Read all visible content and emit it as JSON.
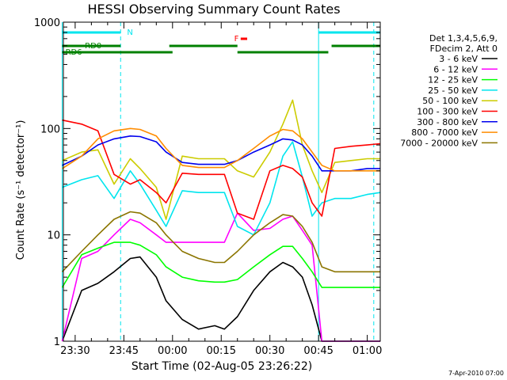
{
  "colors": {
    "background": "#ffffff",
    "axis": "#000000",
    "cyan_marker": "#00e5ee",
    "green_marker": "#008000",
    "flare_marker": "#ff0000"
  },
  "chart_data": {
    "type": "line",
    "title": "HESSI Observing Summary Count Rates",
    "xlabel": "Start Time (02-Aug-05 23:26:22)",
    "ylabel": "Count Rate (s⁻¹ detector⁻¹)",
    "y_scale": "log",
    "ylim": [
      1,
      1000
    ],
    "xlim": [
      "23:26:22",
      "01:04:00"
    ],
    "x_tick_labels": [
      "23:30",
      "23:45",
      "00:00",
      "00:15",
      "00:30",
      "00:45",
      "01:00"
    ],
    "y_tick_labels": [
      "1",
      "10",
      "100",
      "1000"
    ],
    "legend": {
      "header_lines": [
        "Det 1,3,4,5,6,9,",
        "FDecim 2, Att 0"
      ],
      "placement": "right"
    },
    "footer": "7-Apr-2010 07:00",
    "markers": {
      "labels": [
        "N",
        "RD0",
        "RD6",
        "F"
      ],
      "N_intervals": [
        [
          "23:26",
          "23:44"
        ],
        [
          "00:45",
          "01:04"
        ]
      ],
      "RD0_intervals": [
        [
          "23:26",
          "23:44"
        ],
        [
          "23:59",
          "00:20"
        ],
        [
          "00:49",
          "01:04"
        ]
      ],
      "RD6_intervals": [
        [
          "23:26",
          "00:00"
        ],
        [
          "00:20",
          "00:48"
        ]
      ],
      "F_interval": [
        "00:21",
        "00:23"
      ],
      "dashed_lines": [
        "23:44",
        "01:02"
      ],
      "solid_lines": [
        "23:26",
        "00:45"
      ]
    },
    "series": [
      {
        "name": "3 - 6 keV",
        "color": "#000000",
        "x": [
          "23:26",
          "23:32",
          "23:37",
          "23:42",
          "23:47",
          "23:50",
          "23:55",
          "23:58",
          "00:03",
          "00:08",
          "00:13",
          "00:16",
          "00:20",
          "00:25",
          "00:30",
          "00:34",
          "00:37",
          "00:40",
          "00:43",
          "00:46",
          "00:50",
          "00:55",
          "01:00",
          "01:04"
        ],
        "values": [
          1.0,
          3.0,
          3.5,
          4.5,
          6.0,
          6.2,
          4.0,
          2.4,
          1.6,
          1.3,
          1.4,
          1.3,
          1.7,
          3.0,
          4.5,
          5.5,
          5.0,
          4.0,
          2.2,
          1.0,
          1.0,
          1.0,
          1.0,
          1.0
        ]
      },
      {
        "name": "6 - 12 keV",
        "color": "#ff00ff",
        "x": [
          "23:26",
          "23:32",
          "23:37",
          "23:42",
          "23:47",
          "23:50",
          "23:55",
          "23:58",
          "00:03",
          "00:08",
          "00:13",
          "00:16",
          "00:20",
          "00:25",
          "00:30",
          "00:34",
          "00:37",
          "00:40",
          "00:43",
          "00:46",
          "00:50",
          "00:55",
          "01:00",
          "01:04"
        ],
        "values": [
          1.0,
          6.0,
          7.0,
          10.0,
          14.0,
          13.0,
          10.0,
          8.5,
          8.5,
          8.5,
          8.5,
          8.5,
          16.0,
          11.0,
          11.5,
          14.0,
          15.0,
          11.0,
          8.0,
          1.0,
          1.0,
          1.0,
          1.0,
          1.0
        ]
      },
      {
        "name": "12 - 25 keV",
        "color": "#00ff00",
        "x": [
          "23:26",
          "23:32",
          "23:37",
          "23:42",
          "23:47",
          "23:50",
          "23:55",
          "23:58",
          "00:03",
          "00:08",
          "00:13",
          "00:16",
          "00:20",
          "00:25",
          "00:30",
          "00:34",
          "00:37",
          "00:40",
          "00:43",
          "00:46",
          "00:50",
          "00:55",
          "01:00",
          "01:04"
        ],
        "values": [
          3.2,
          6.5,
          7.5,
          8.5,
          8.5,
          8.0,
          6.5,
          5.0,
          4.0,
          3.7,
          3.6,
          3.6,
          3.8,
          5.0,
          6.5,
          7.8,
          7.8,
          6.0,
          4.5,
          3.2,
          3.2,
          3.2,
          3.2,
          3.2
        ]
      },
      {
        "name": "25 - 50 keV",
        "color": "#00e5ee",
        "x": [
          "23:26",
          "23:32",
          "23:37",
          "23:42",
          "23:47",
          "23:50",
          "23:55",
          "23:58",
          "00:03",
          "00:08",
          "00:13",
          "00:16",
          "00:20",
          "00:25",
          "00:30",
          "00:34",
          "00:37",
          "00:40",
          "00:43",
          "00:46",
          "00:50",
          "00:55",
          "01:00",
          "01:04"
        ],
        "values": [
          28.0,
          33.0,
          36.0,
          22.0,
          40.0,
          30.0,
          17.0,
          12.0,
          26.0,
          25.0,
          25.0,
          25.0,
          12.0,
          10.0,
          20.0,
          55.0,
          75.0,
          35.0,
          15.0,
          20.0,
          22.0,
          22.0,
          24.0,
          25.0
        ]
      },
      {
        "name": "50 - 100 keV",
        "color": "#cccc00",
        "x": [
          "23:26",
          "23:32",
          "23:37",
          "23:42",
          "23:47",
          "23:50",
          "23:55",
          "23:58",
          "00:03",
          "00:08",
          "00:13",
          "00:16",
          "00:20",
          "00:25",
          "00:30",
          "00:34",
          "00:37",
          "00:40",
          "00:43",
          "00:46",
          "00:50",
          "00:55",
          "01:00",
          "01:04"
        ],
        "values": [
          50.0,
          60.0,
          63.0,
          30.0,
          52.0,
          42.0,
          28.0,
          14.0,
          55.0,
          52.0,
          52.0,
          52.0,
          40.0,
          35.0,
          60.0,
          110.0,
          185.0,
          70.0,
          40.0,
          25.0,
          48.0,
          50.0,
          52.0,
          52.0
        ]
      },
      {
        "name": "100 - 300 keV",
        "color": "#ff0000",
        "x": [
          "23:26",
          "23:32",
          "23:37",
          "23:42",
          "23:47",
          "23:50",
          "23:55",
          "23:58",
          "00:03",
          "00:08",
          "00:13",
          "00:16",
          "00:20",
          "00:25",
          "00:30",
          "00:34",
          "00:37",
          "00:40",
          "00:43",
          "00:46",
          "00:50",
          "00:55",
          "01:00",
          "01:04"
        ],
        "values": [
          120.0,
          110.0,
          95.0,
          37.0,
          30.0,
          33.0,
          25.0,
          20.0,
          38.0,
          37.0,
          37.0,
          37.0,
          16.0,
          14.0,
          40.0,
          45.0,
          42.0,
          35.0,
          20.0,
          15.0,
          65.0,
          68.0,
          70.0,
          72.0
        ]
      },
      {
        "name": "300 - 800 keV",
        "color": "#0000ee",
        "x": [
          "23:26",
          "23:32",
          "23:37",
          "23:42",
          "23:47",
          "23:50",
          "23:55",
          "23:58",
          "00:03",
          "00:08",
          "00:13",
          "00:16",
          "00:20",
          "00:25",
          "00:30",
          "00:34",
          "00:37",
          "00:40",
          "00:43",
          "00:46",
          "00:50",
          "00:55",
          "01:00",
          "01:04"
        ],
        "values": [
          45.0,
          55.0,
          70.0,
          80.0,
          85.0,
          84.0,
          75.0,
          60.0,
          48.0,
          46.0,
          46.0,
          46.0,
          50.0,
          60.0,
          70.0,
          80.0,
          78.0,
          70.0,
          55.0,
          40.0,
          40.0,
          40.0,
          42.0,
          42.0
        ]
      },
      {
        "name": "800 - 7000 keV",
        "color": "#ff8c00",
        "x": [
          "23:26",
          "23:32",
          "23:37",
          "23:42",
          "23:47",
          "23:50",
          "23:55",
          "23:58",
          "00:03",
          "00:08",
          "00:13",
          "00:16",
          "00:20",
          "00:25",
          "00:30",
          "00:34",
          "00:37",
          "00:40",
          "00:43",
          "00:46",
          "00:50",
          "00:55",
          "01:00",
          "01:04"
        ],
        "values": [
          42.0,
          55.0,
          80.0,
          95.0,
          100.0,
          98.0,
          85.0,
          65.0,
          45.0,
          43.0,
          43.0,
          43.0,
          50.0,
          65.0,
          85.0,
          98.0,
          95.0,
          80.0,
          60.0,
          45.0,
          40.0,
          40.0,
          40.0,
          40.0
        ]
      },
      {
        "name": "7000 - 20000 keV",
        "color": "#8b7500",
        "x": [
          "23:26",
          "23:32",
          "23:37",
          "23:42",
          "23:47",
          "23:50",
          "23:55",
          "23:58",
          "00:03",
          "00:08",
          "00:13",
          "00:16",
          "00:20",
          "00:25",
          "00:30",
          "00:34",
          "00:37",
          "00:40",
          "00:43",
          "00:46",
          "00:50",
          "00:55",
          "01:00",
          "01:04"
        ],
        "values": [
          4.5,
          7.0,
          10.0,
          14.0,
          16.5,
          16.0,
          13.0,
          10.0,
          7.0,
          6.0,
          5.5,
          5.5,
          7.0,
          10.0,
          13.0,
          15.5,
          15.0,
          12.0,
          8.5,
          5.0,
          4.5,
          4.5,
          4.5,
          4.5
        ]
      }
    ]
  }
}
